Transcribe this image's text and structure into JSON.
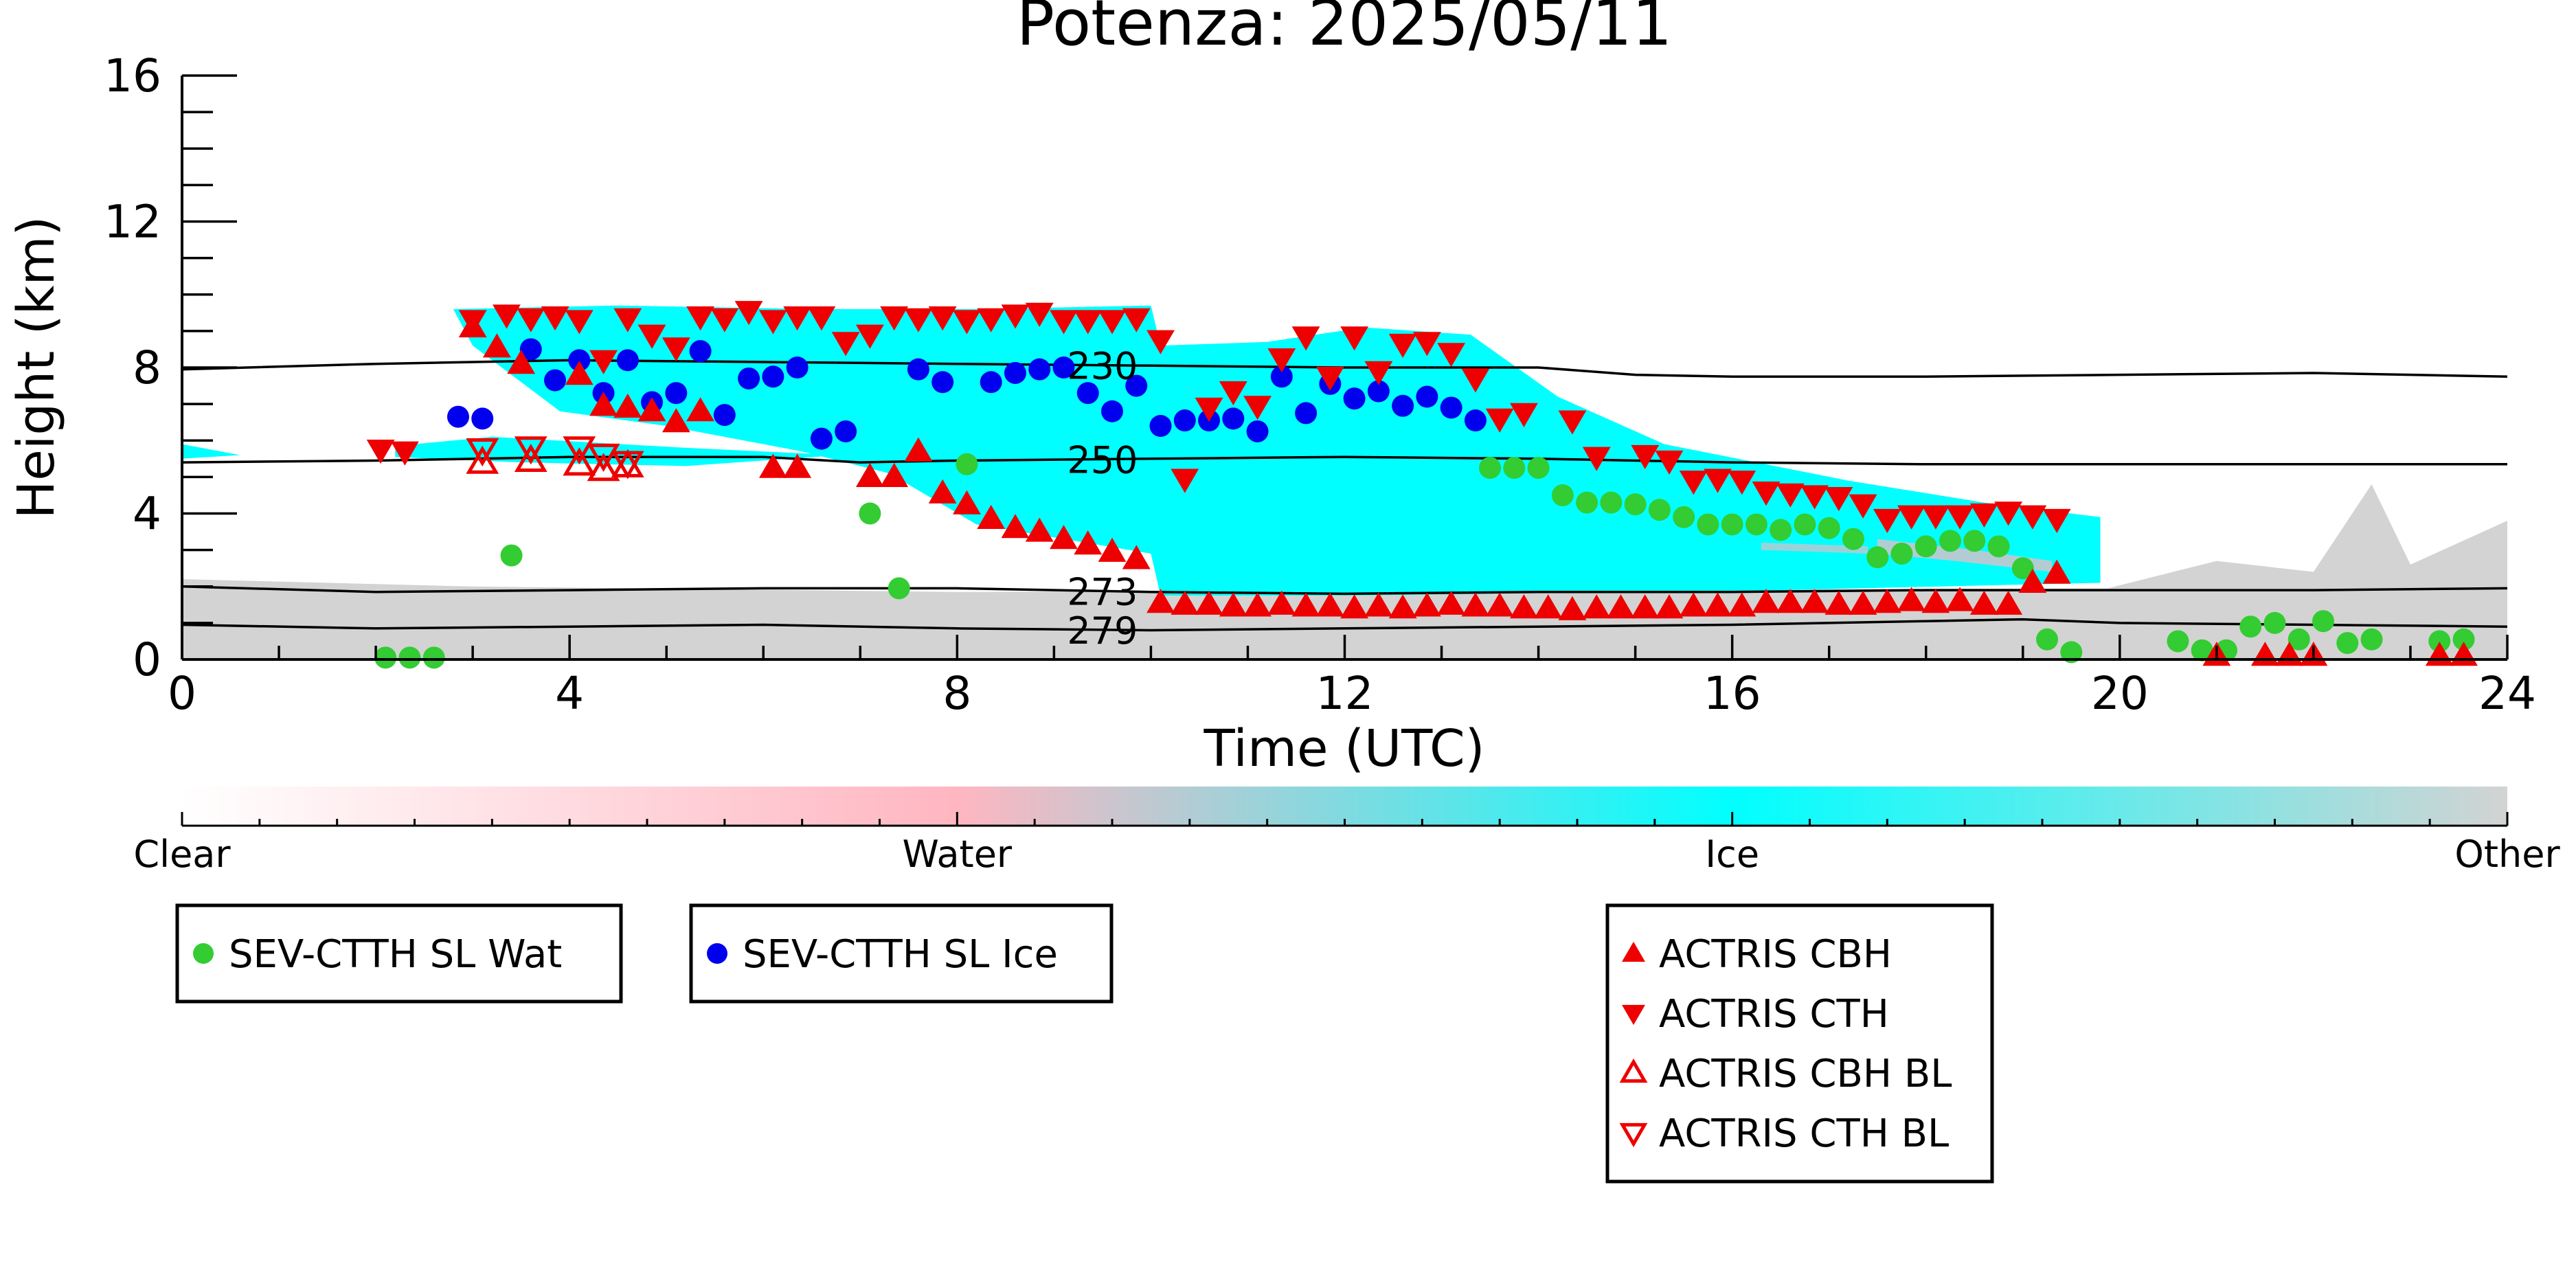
{
  "chart_data": {
    "type": "scatter",
    "title": "Potenza: 2025/05/11",
    "xlabel": "Time (UTC)",
    "ylabel": "Height (km)",
    "xlim": [
      0,
      24
    ],
    "ylim": [
      0,
      16
    ],
    "x_ticks": [
      "0",
      "4",
      "8",
      "12",
      "16",
      "20",
      "24"
    ],
    "y_ticks": [
      "0",
      "4",
      "8",
      "12",
      "16"
    ],
    "grid": false,
    "colorbar": {
      "labels": [
        "Clear",
        "Water",
        "Ice",
        "Other"
      ],
      "colors": [
        "#ffffff",
        "#ffb6c1",
        "#00ffff",
        "#d3d3d3"
      ]
    },
    "contours": [
      {
        "label": "230",
        "label_x": 9.5,
        "points": [
          [
            0,
            7.95
          ],
          [
            2,
            8.1
          ],
          [
            4,
            8.2
          ],
          [
            6,
            8.15
          ],
          [
            8,
            8.1
          ],
          [
            10,
            8.05
          ],
          [
            12,
            8.0
          ],
          [
            14,
            8.0
          ],
          [
            15,
            7.8
          ],
          [
            16,
            7.75
          ],
          [
            18,
            7.75
          ],
          [
            20,
            7.8
          ],
          [
            22,
            7.85
          ],
          [
            24,
            7.75
          ]
        ]
      },
      {
        "label": "250",
        "label_x": 9.5,
        "points": [
          [
            0,
            5.4
          ],
          [
            2,
            5.45
          ],
          [
            4,
            5.55
          ],
          [
            6,
            5.55
          ],
          [
            7,
            5.4
          ],
          [
            8,
            5.45
          ],
          [
            10,
            5.5
          ],
          [
            12,
            5.55
          ],
          [
            14,
            5.5
          ],
          [
            16,
            5.4
          ],
          [
            18,
            5.35
          ],
          [
            20,
            5.35
          ],
          [
            22,
            5.35
          ],
          [
            24,
            5.35
          ]
        ]
      },
      {
        "label": "273",
        "label_x": 9.5,
        "points": [
          [
            0,
            2.0
          ],
          [
            2,
            1.85
          ],
          [
            4,
            1.9
          ],
          [
            6,
            1.95
          ],
          [
            8,
            1.95
          ],
          [
            10,
            1.85
          ],
          [
            12,
            1.8
          ],
          [
            14,
            1.85
          ],
          [
            16,
            1.85
          ],
          [
            18,
            1.9
          ],
          [
            20,
            1.9
          ],
          [
            22,
            1.9
          ],
          [
            24,
            1.95
          ]
        ]
      },
      {
        "label": "279",
        "label_x": 9.5,
        "points": [
          [
            0,
            0.95
          ],
          [
            2,
            0.85
          ],
          [
            4,
            0.9
          ],
          [
            6,
            0.95
          ],
          [
            8,
            0.85
          ],
          [
            10,
            0.8
          ],
          [
            12,
            0.85
          ],
          [
            14,
            0.9
          ],
          [
            16,
            0.95
          ],
          [
            18,
            1.05
          ],
          [
            19,
            1.1
          ],
          [
            20,
            1.0
          ],
          [
            22,
            0.95
          ],
          [
            24,
            0.9
          ]
        ]
      }
    ],
    "series": [
      {
        "name": "SEV-CTTH SL Wat",
        "marker": "circle",
        "color": "#33cc33",
        "points": [
          [
            2.1,
            0.05
          ],
          [
            2.35,
            0.05
          ],
          [
            2.6,
            0.05
          ],
          [
            3.4,
            2.85
          ],
          [
            7.1,
            4.0
          ],
          [
            7.4,
            1.95
          ],
          [
            8.1,
            5.35
          ],
          [
            13.5,
            5.25
          ],
          [
            13.75,
            5.25
          ],
          [
            14.0,
            5.25
          ],
          [
            14.25,
            4.5
          ],
          [
            14.5,
            4.3
          ],
          [
            14.75,
            4.3
          ],
          [
            15.0,
            4.25
          ],
          [
            15.25,
            4.1
          ],
          [
            15.5,
            3.9
          ],
          [
            15.75,
            3.7
          ],
          [
            16.0,
            3.7
          ],
          [
            16.25,
            3.7
          ],
          [
            16.5,
            3.55
          ],
          [
            16.75,
            3.7
          ],
          [
            17.0,
            3.6
          ],
          [
            17.25,
            3.3
          ],
          [
            17.5,
            2.8
          ],
          [
            17.75,
            2.9
          ],
          [
            18.0,
            3.1
          ],
          [
            18.25,
            3.25
          ],
          [
            18.5,
            3.25
          ],
          [
            18.75,
            3.1
          ],
          [
            19.0,
            2.5
          ],
          [
            19.25,
            0.55
          ],
          [
            19.5,
            0.2
          ],
          [
            20.6,
            0.5
          ],
          [
            20.85,
            0.25
          ],
          [
            21.1,
            0.25
          ],
          [
            21.35,
            0.9
          ],
          [
            21.6,
            1.0
          ],
          [
            21.85,
            0.55
          ],
          [
            22.1,
            1.05
          ],
          [
            22.35,
            0.45
          ],
          [
            22.6,
            0.55
          ],
          [
            23.3,
            0.5
          ],
          [
            23.55,
            0.55
          ]
        ]
      },
      {
        "name": "SEV-CTTH SL Ice",
        "marker": "circle",
        "color": "#0000ee",
        "points": [
          [
            2.85,
            6.65
          ],
          [
            3.1,
            6.6
          ],
          [
            3.6,
            8.5
          ],
          [
            3.85,
            7.65
          ],
          [
            4.1,
            8.2
          ],
          [
            4.35,
            7.3
          ],
          [
            4.6,
            8.2
          ],
          [
            4.85,
            7.05
          ],
          [
            5.1,
            7.3
          ],
          [
            5.35,
            8.45
          ],
          [
            5.6,
            6.7
          ],
          [
            5.85,
            7.7
          ],
          [
            6.1,
            7.75
          ],
          [
            6.35,
            8.0
          ],
          [
            6.6,
            6.05
          ],
          [
            6.85,
            6.25
          ],
          [
            7.6,
            7.95
          ],
          [
            7.85,
            7.6
          ],
          [
            8.35,
            7.6
          ],
          [
            8.6,
            7.85
          ],
          [
            8.85,
            7.95
          ],
          [
            9.1,
            8.0
          ],
          [
            9.35,
            7.3
          ],
          [
            9.6,
            6.8
          ],
          [
            9.85,
            7.5
          ],
          [
            10.1,
            6.4
          ],
          [
            10.35,
            6.55
          ],
          [
            10.6,
            6.55
          ],
          [
            10.85,
            6.6
          ],
          [
            11.1,
            6.25
          ],
          [
            11.35,
            7.75
          ],
          [
            11.6,
            6.75
          ],
          [
            11.85,
            7.55
          ],
          [
            12.1,
            7.15
          ],
          [
            12.35,
            7.35
          ],
          [
            12.6,
            6.95
          ],
          [
            12.85,
            7.2
          ],
          [
            13.1,
            6.9
          ],
          [
            13.35,
            6.55
          ]
        ]
      },
      {
        "name": "ACTRIS CBH",
        "marker": "triangle-up",
        "color": "#ee0000",
        "filled": true,
        "points": [
          [
            3.0,
            9.1
          ],
          [
            3.25,
            8.55
          ],
          [
            3.5,
            8.1
          ],
          [
            4.1,
            7.8
          ],
          [
            4.35,
            6.95
          ],
          [
            4.6,
            6.9
          ],
          [
            4.85,
            6.8
          ],
          [
            5.1,
            6.5
          ],
          [
            5.35,
            6.8
          ],
          [
            6.1,
            5.25
          ],
          [
            6.35,
            5.25
          ],
          [
            7.1,
            5.0
          ],
          [
            7.35,
            5.0
          ],
          [
            7.6,
            5.7
          ],
          [
            7.85,
            4.55
          ],
          [
            8.1,
            4.25
          ],
          [
            8.35,
            3.85
          ],
          [
            8.6,
            3.6
          ],
          [
            8.85,
            3.5
          ],
          [
            9.1,
            3.3
          ],
          [
            9.35,
            3.15
          ],
          [
            9.6,
            2.95
          ],
          [
            9.85,
            2.75
          ],
          [
            10.1,
            1.55
          ],
          [
            10.35,
            1.5
          ],
          [
            10.6,
            1.5
          ],
          [
            10.85,
            1.45
          ],
          [
            11.1,
            1.45
          ],
          [
            11.35,
            1.5
          ],
          [
            11.6,
            1.45
          ],
          [
            11.85,
            1.45
          ],
          [
            12.1,
            1.4
          ],
          [
            12.35,
            1.45
          ],
          [
            12.6,
            1.4
          ],
          [
            12.85,
            1.45
          ],
          [
            13.1,
            1.5
          ],
          [
            13.35,
            1.45
          ],
          [
            13.6,
            1.45
          ],
          [
            13.85,
            1.4
          ],
          [
            14.1,
            1.4
          ],
          [
            14.35,
            1.35
          ],
          [
            14.6,
            1.4
          ],
          [
            14.85,
            1.4
          ],
          [
            15.1,
            1.4
          ],
          [
            15.35,
            1.4
          ],
          [
            15.6,
            1.45
          ],
          [
            15.85,
            1.45
          ],
          [
            16.1,
            1.45
          ],
          [
            16.35,
            1.55
          ],
          [
            16.6,
            1.55
          ],
          [
            16.85,
            1.55
          ],
          [
            17.1,
            1.5
          ],
          [
            17.35,
            1.5
          ],
          [
            17.6,
            1.55
          ],
          [
            17.85,
            1.6
          ],
          [
            18.1,
            1.55
          ],
          [
            18.35,
            1.6
          ],
          [
            18.6,
            1.5
          ],
          [
            18.85,
            1.5
          ],
          [
            19.1,
            2.1
          ],
          [
            19.35,
            2.35
          ],
          [
            21.0,
            0.1
          ],
          [
            21.5,
            0.1
          ],
          [
            21.75,
            0.1
          ],
          [
            22.0,
            0.1
          ],
          [
            23.3,
            0.1
          ],
          [
            23.55,
            0.1
          ]
        ]
      },
      {
        "name": "ACTRIS CTH",
        "marker": "triangle-down",
        "color": "#ee0000",
        "filled": true,
        "points": [
          [
            2.05,
            5.75
          ],
          [
            2.3,
            5.7
          ],
          [
            3.0,
            9.3
          ],
          [
            3.35,
            9.45
          ],
          [
            3.6,
            9.35
          ],
          [
            3.85,
            9.4
          ],
          [
            4.1,
            9.3
          ],
          [
            4.35,
            8.2
          ],
          [
            4.6,
            9.35
          ],
          [
            4.85,
            8.9
          ],
          [
            5.1,
            8.55
          ],
          [
            5.35,
            9.4
          ],
          [
            5.6,
            9.35
          ],
          [
            5.85,
            9.55
          ],
          [
            6.1,
            9.3
          ],
          [
            6.35,
            9.4
          ],
          [
            6.6,
            9.4
          ],
          [
            6.85,
            8.7
          ],
          [
            7.1,
            8.9
          ],
          [
            7.35,
            9.4
          ],
          [
            7.6,
            9.35
          ],
          [
            7.85,
            9.4
          ],
          [
            8.1,
            9.3
          ],
          [
            8.35,
            9.35
          ],
          [
            8.6,
            9.45
          ],
          [
            8.85,
            9.5
          ],
          [
            9.1,
            9.3
          ],
          [
            9.35,
            9.3
          ],
          [
            9.6,
            9.3
          ],
          [
            9.85,
            9.35
          ],
          [
            10.1,
            8.75
          ],
          [
            10.35,
            4.95
          ],
          [
            10.6,
            6.9
          ],
          [
            10.85,
            7.35
          ],
          [
            11.1,
            6.95
          ],
          [
            11.35,
            8.25
          ],
          [
            11.6,
            8.85
          ],
          [
            11.85,
            7.75
          ],
          [
            12.1,
            8.85
          ],
          [
            12.35,
            7.9
          ],
          [
            12.6,
            8.65
          ],
          [
            12.85,
            8.7
          ],
          [
            13.1,
            8.4
          ],
          [
            13.35,
            7.7
          ],
          [
            13.6,
            6.6
          ],
          [
            13.85,
            6.75
          ],
          [
            14.35,
            6.55
          ],
          [
            14.6,
            5.55
          ],
          [
            15.1,
            5.6
          ],
          [
            15.35,
            5.45
          ],
          [
            15.6,
            4.9
          ],
          [
            15.85,
            4.95
          ],
          [
            16.1,
            4.9
          ],
          [
            16.35,
            4.6
          ],
          [
            16.6,
            4.55
          ],
          [
            16.85,
            4.5
          ],
          [
            17.1,
            4.45
          ],
          [
            17.35,
            4.25
          ],
          [
            17.6,
            3.85
          ],
          [
            17.85,
            3.95
          ],
          [
            18.1,
            3.95
          ],
          [
            18.35,
            3.95
          ],
          [
            18.6,
            4.0
          ],
          [
            18.85,
            4.05
          ],
          [
            19.1,
            3.95
          ],
          [
            19.35,
            3.85
          ]
        ]
      },
      {
        "name": "ACTRIS CBH BL",
        "marker": "triangle-up",
        "color": "#ee0000",
        "filled": false,
        "points": [
          [
            3.1,
            5.4
          ],
          [
            3.6,
            5.45
          ],
          [
            4.1,
            5.35
          ],
          [
            4.35,
            5.2
          ],
          [
            4.6,
            5.3
          ]
        ]
      },
      {
        "name": "ACTRIS CTH BL",
        "marker": "triangle-down",
        "color": "#ee0000",
        "filled": false,
        "points": [
          [
            3.1,
            5.75
          ],
          [
            3.6,
            5.8
          ],
          [
            4.1,
            5.8
          ],
          [
            4.35,
            5.6
          ],
          [
            4.6,
            5.4
          ]
        ]
      }
    ],
    "legends": [
      {
        "entries": [
          "SEV-CTTH SL Wat"
        ]
      },
      {
        "entries": [
          "SEV-CTTH SL Ice"
        ]
      },
      {
        "entries": [
          "ACTRIS CBH",
          "ACTRIS CTH",
          "ACTRIS CBH BL",
          "ACTRIS CTH BL"
        ]
      }
    ]
  }
}
